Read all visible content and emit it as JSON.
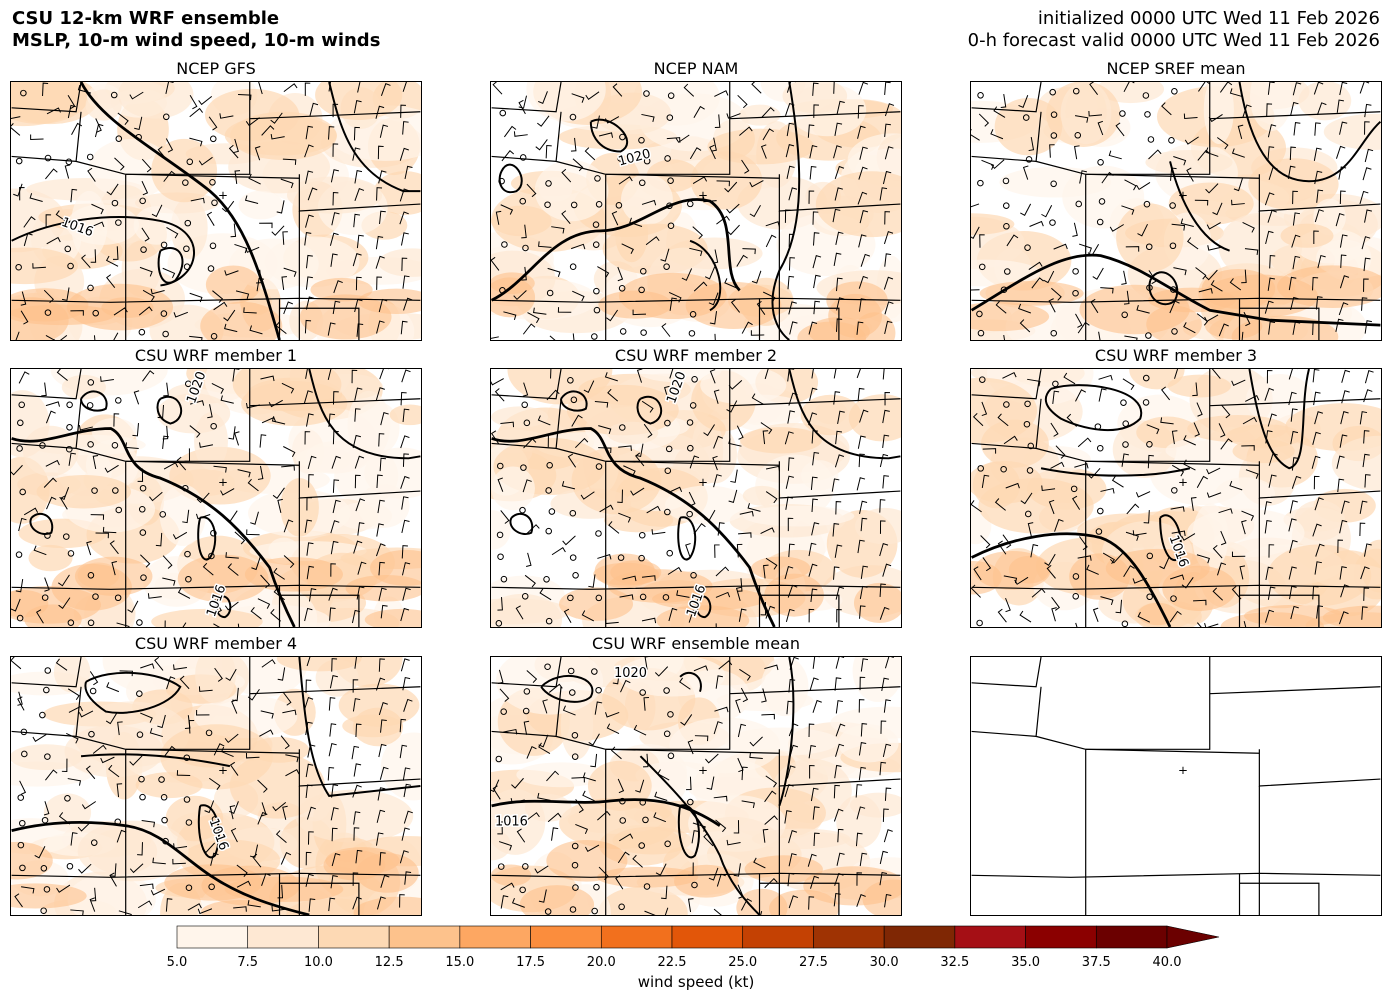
{
  "header": {
    "title_line1": "CSU 12-km WRF ensemble",
    "title_line2": "MSLP, 10-m wind speed, 10-m winds",
    "init_line": "initialized 0000 UTC Wed 11 Feb 2026",
    "valid_line": "0-h forecast valid 0000 UTC Wed 11 Feb 2026"
  },
  "panels": [
    {
      "title": "NCEP GFS",
      "isobar_labels": [
        "1016"
      ]
    },
    {
      "title": "NCEP NAM",
      "isobar_labels": [
        "1020"
      ]
    },
    {
      "title": "NCEP SREF mean",
      "isobar_labels": []
    },
    {
      "title": "CSU WRF member 1",
      "isobar_labels": [
        "1020",
        "1016"
      ]
    },
    {
      "title": "CSU WRF member 2",
      "isobar_labels": [
        "1020",
        "1016"
      ]
    },
    {
      "title": "CSU WRF member 3",
      "isobar_labels": [
        "1016"
      ]
    },
    {
      "title": "CSU WRF member 4",
      "isobar_labels": [
        "1016"
      ]
    },
    {
      "title": "CSU WRF ensemble mean",
      "isobar_labels": [
        "1020",
        "1016"
      ]
    },
    {
      "title": "",
      "isobar_labels": []
    }
  ],
  "colorbar": {
    "label": "wind speed (kt)",
    "ticks": [
      "5.0",
      "7.5",
      "10.0",
      "12.5",
      "15.0",
      "17.5",
      "20.0",
      "22.5",
      "25.0",
      "27.5",
      "30.0",
      "32.5",
      "35.0",
      "37.5",
      "40.0"
    ],
    "colors": [
      "#fff5eb",
      "#fee8d3",
      "#fdd9b4",
      "#fdc28c",
      "#fda762",
      "#fb8d3d",
      "#f2701d",
      "#e25609",
      "#c44103",
      "#9f3303",
      "#7f2704",
      "#a50f15",
      "#8b0000",
      "#6b0000"
    ],
    "extend": "max"
  }
}
